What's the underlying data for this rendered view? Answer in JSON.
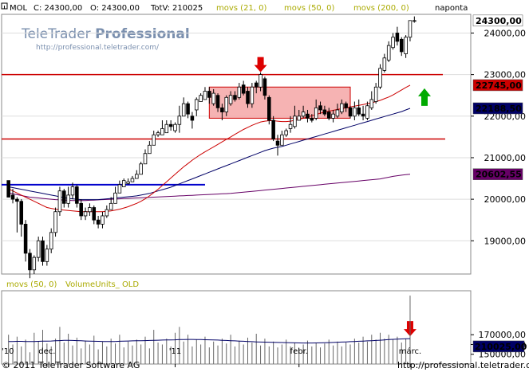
{
  "header": {
    "instrument": "MOL",
    "close": "C: 24300,00",
    "open": "O: 24300,00",
    "volume": "TotV: 210025",
    "ma_labels": [
      "movs (21, 0)",
      "movs (50, 0)",
      "movs (200, 0)"
    ],
    "period": "naponta"
  },
  "watermark": {
    "title_a": "TeleTrader",
    "title_b": "Professional",
    "url": "http://professional.teletrader.com/"
  },
  "footer": {
    "copyright": "© 2011 TeleTrader Software AG",
    "url": "http://professional.teletrader.com/"
  },
  "volume_panel": {
    "label_ma": "movs (50, 0)",
    "label_vol": "VolumeUnits_ OLD",
    "ticks": [
      "170000,00",
      "160000,00",
      "150000,00"
    ],
    "last_value": "210025,00"
  },
  "price_tags": {
    "last": "24300,00",
    "ma21": "22745,00",
    "ma50": "22188,50",
    "ma200": "20602,55"
  },
  "colors": {
    "up_candle": "#ffffff",
    "down_candle": "#000000",
    "ma21": "#cc0000",
    "ma50": "#000066",
    "ma200": "#660066",
    "resistance": "#cc0000",
    "support_blue": "#0000cc",
    "box_fill": "#f4a6a6",
    "arrow_down": "#dd0000",
    "arrow_up": "#00aa00",
    "header_ma": "#aaaa00"
  },
  "chart_data": {
    "type": "candlestick",
    "y_axis": {
      "ticks": [
        "24000,00",
        "23000,00",
        "22000,00",
        "21000,00",
        "20000,00",
        "19000,00"
      ],
      "ylim": [
        18200,
        24450
      ]
    },
    "x_axis": {
      "tick_labels": [
        "'10",
        "dec.",
        "'11",
        "febr.",
        "márc."
      ],
      "tick_index": [
        0,
        9,
        39,
        68,
        94
      ]
    },
    "candles": [
      [
        20050,
        20450,
        20350,
        20050
      ],
      [
        20000,
        20100,
        20250,
        19900
      ],
      [
        19950,
        20000,
        20050,
        19200
      ],
      [
        19400,
        19950,
        20000,
        19100
      ],
      [
        18700,
        19400,
        19500,
        18500
      ],
      [
        18300,
        18700,
        18800,
        18100
      ],
      [
        18600,
        18300,
        18650,
        18200
      ],
      [
        19000,
        18600,
        19100,
        18500
      ],
      [
        18500,
        19000,
        19100,
        18400
      ],
      [
        18800,
        18500,
        18900,
        18400
      ],
      [
        19200,
        18800,
        19300,
        18700
      ],
      [
        19700,
        19200,
        19800,
        19100
      ],
      [
        20200,
        19700,
        20300,
        19600
      ],
      [
        19900,
        20200,
        20250,
        19800
      ],
      [
        20100,
        19900,
        20300,
        19800
      ],
      [
        20300,
        20100,
        20400,
        20000
      ],
      [
        19900,
        20300,
        20350,
        19800
      ],
      [
        19600,
        19900,
        20000,
        19500
      ],
      [
        19700,
        19600,
        19800,
        19500
      ],
      [
        19800,
        19700,
        19900,
        19600
      ],
      [
        19500,
        19800,
        19850,
        19400
      ],
      [
        19400,
        19500,
        19600,
        19300
      ],
      [
        19600,
        19400,
        19700,
        19300
      ],
      [
        19750,
        19600,
        19850,
        19550
      ],
      [
        19900,
        19750,
        20050,
        19800
      ],
      [
        20150,
        19900,
        20300,
        20100
      ],
      [
        20350,
        20150,
        20450,
        20250
      ],
      [
        20450,
        20300,
        20500,
        20350
      ],
      [
        20420,
        20380,
        20500,
        20350
      ],
      [
        20500,
        20420,
        20560,
        20450
      ],
      [
        20600,
        20500,
        20700,
        20550
      ],
      [
        20850,
        20600,
        20900,
        20600
      ],
      [
        21100,
        20850,
        21200,
        20850
      ],
      [
        21300,
        21100,
        21400,
        21100
      ],
      [
        21550,
        21300,
        21650,
        21300
      ],
      [
        21600,
        21550,
        21650,
        21500
      ],
      [
        21700,
        21550,
        21900,
        21550
      ],
      [
        21800,
        21600,
        21900,
        21600
      ],
      [
        21750,
        21800,
        21900,
        21650
      ],
      [
        21800,
        21650,
        21850,
        21600
      ],
      [
        22000,
        21800,
        22250,
        21600
      ],
      [
        22300,
        22000,
        22450,
        22000
      ],
      [
        22050,
        22300,
        22350,
        21950
      ],
      [
        21900,
        22000,
        22100,
        21700
      ],
      [
        22400,
        22150,
        22450,
        22000
      ],
      [
        22500,
        22350,
        22550,
        22350
      ],
      [
        22600,
        22400,
        22700,
        22400
      ],
      [
        22450,
        22600,
        22700,
        22300
      ],
      [
        22550,
        22300,
        22650,
        22250
      ],
      [
        22200,
        22500,
        22550,
        22100
      ],
      [
        22100,
        22200,
        22300,
        21900
      ],
      [
        22450,
        22100,
        22500,
        22000
      ],
      [
        22500,
        22300,
        22600,
        22250
      ],
      [
        22400,
        22500,
        22600,
        22350
      ],
      [
        22700,
        22450,
        22800,
        22400
      ],
      [
        22550,
        22750,
        22850,
        22500
      ],
      [
        22300,
        22600,
        22700,
        22200
      ],
      [
        22700,
        22300,
        22800,
        22200
      ],
      [
        22700,
        22800,
        22850,
        22550
      ],
      [
        23000,
        22700,
        23050,
        22600
      ],
      [
        22500,
        22900,
        22950,
        22400
      ],
      [
        21900,
        22450,
        22500,
        21800
      ],
      [
        21450,
        21900,
        22000,
        21400
      ],
      [
        21300,
        21400,
        21550,
        21050
      ],
      [
        21550,
        21300,
        21650,
        21300
      ],
      [
        21650,
        21550,
        21700,
        21500
      ],
      [
        21800,
        21700,
        22000,
        21600
      ],
      [
        22000,
        21750,
        22250,
        21700
      ],
      [
        22000,
        21900,
        22150,
        21900
      ],
      [
        22100,
        22000,
        22250,
        21950
      ],
      [
        21950,
        22050,
        22150,
        21850
      ],
      [
        21900,
        21950,
        22050,
        21850
      ],
      [
        22200,
        21950,
        22400,
        21900
      ],
      [
        22150,
        22250,
        22350,
        22050
      ],
      [
        22050,
        22150,
        22250,
        22000
      ],
      [
        21950,
        22100,
        22200,
        21900
      ],
      [
        22050,
        21950,
        22150,
        21850
      ],
      [
        22150,
        22000,
        22300,
        21950
      ],
      [
        22300,
        22100,
        22400,
        22050
      ],
      [
        22200,
        22300,
        22350,
        22100
      ],
      [
        22000,
        22200,
        22250,
        21950
      ],
      [
        22200,
        22000,
        22350,
        21900
      ],
      [
        22050,
        22200,
        22400,
        22000
      ],
      [
        22000,
        22050,
        22250,
        21900
      ],
      [
        22250,
        21950,
        22350,
        21900
      ],
      [
        22400,
        22200,
        22600,
        22150
      ],
      [
        22700,
        22350,
        22800,
        22300
      ],
      [
        23150,
        22700,
        23250,
        22650
      ],
      [
        23400,
        23100,
        23500,
        23050
      ],
      [
        23700,
        23350,
        23800,
        23300
      ],
      [
        23900,
        23650,
        24000,
        23600
      ],
      [
        23800,
        24000,
        24150,
        23700
      ],
      [
        23550,
        23850,
        23900,
        23450
      ],
      [
        23900,
        23500,
        23950,
        23400
      ],
      [
        24300,
        23900,
        24300,
        23800
      ],
      [
        24300,
        24300,
        24400,
        24250
      ]
    ],
    "ma21": [
      20250,
      20200,
      20150,
      20100,
      20050,
      20000,
      19950,
      19900,
      19850,
      19800,
      19780,
      19760,
      19750,
      19740,
      19730,
      19720,
      19710,
      19700,
      19700,
      19700,
      19700,
      19700,
      19700,
      19710,
      19720,
      19740,
      19760,
      19790,
      19820,
      19860,
      19900,
      19950,
      20010,
      20080,
      20160,
      20240,
      20330,
      20420,
      20510,
      20600,
      20690,
      20780,
      20860,
      20940,
      21010,
      21080,
      21140,
      21200,
      21260,
      21320,
      21380,
      21440,
      21500,
      21560,
      21620,
      21680,
      21730,
      21780,
      21820,
      21860,
      21880,
      21890,
      21890,
      21880,
      21870,
      21870,
      21880,
      21900,
      21920,
      21950,
      21980,
      22010,
      22040,
      22070,
      22100,
      22120,
      22140,
      22160,
      22180,
      22200,
      22220,
      22240,
      22260,
      22280,
      22300,
      22320,
      22350,
      22380,
      22420,
      22460,
      22510,
      22570,
      22630,
      22690,
      22745
    ],
    "ma50": [
      20300,
      20280,
      20260,
      20240,
      20220,
      20200,
      20180,
      20160,
      20140,
      20120,
      20100,
      20080,
      20060,
      20040,
      20020,
      20010,
      20000,
      19990,
      19990,
      19990,
      19990,
      19990,
      20000,
      20010,
      20020,
      20030,
      20040,
      20050,
      20060,
      20070,
      20080,
      20100,
      20120,
      20140,
      20170,
      20200,
      20230,
      20260,
      20290,
      20330,
      20370,
      20410,
      20450,
      20490,
      20530,
      20570,
      20610,
      20650,
      20690,
      20730,
      20770,
      20810,
      20850,
      20890,
      20930,
      20970,
      21010,
      21050,
      21090,
      21130,
      21170,
      21200,
      21230,
      21250,
      21270,
      21300,
      21330,
      21360,
      21390,
      21420,
      21450,
      21480,
      21510,
      21540,
      21570,
      21600,
      21630,
      21660,
      21690,
      21720,
      21750,
      21780,
      21810,
      21840,
      21870,
      21900,
      21930,
      21960,
      21990,
      22020,
      22050,
      22080,
      22110,
      22150,
      22188
    ],
    "ma200": [
      20150,
      20130,
      20110,
      20090,
      20070,
      20050,
      20040,
      20030,
      20020,
      20010,
      20000,
      19990,
      19985,
      19980,
      19975,
      19970,
      19970,
      19970,
      19970,
      19975,
      19980,
      19985,
      19990,
      19995,
      20000,
      20005,
      20010,
      20015,
      20020,
      20025,
      20030,
      20035,
      20040,
      20045,
      20050,
      20055,
      20060,
      20065,
      20070,
      20075,
      20080,
      20085,
      20090,
      20095,
      20100,
      20105,
      20110,
      20115,
      20120,
      20125,
      20130,
      20135,
      20140,
      20150,
      20160,
      20170,
      20180,
      20190,
      20200,
      20210,
      20220,
      20230,
      20240,
      20250,
      20260,
      20270,
      20280,
      20290,
      20300,
      20310,
      20320,
      20330,
      20340,
      20350,
      20360,
      20370,
      20380,
      20390,
      20400,
      20410,
      20420,
      20430,
      20440,
      20450,
      20460,
      20470,
      20480,
      20490,
      20510,
      20530,
      20550,
      20565,
      20580,
      20592,
      20602
    ],
    "volume": [
      170000,
      160000,
      168000,
      158000,
      165000,
      152000,
      172000,
      163000,
      175000,
      161000,
      158000,
      166000,
      178000,
      162000,
      171000,
      159000,
      167000,
      156000,
      164000,
      160000,
      169000,
      155000,
      163000,
      158000,
      166000,
      161000,
      170000,
      157000,
      163000,
      159000,
      165000,
      160000,
      168000,
      156000,
      175000,
      162000,
      160000,
      166000,
      158000,
      172000,
      178000,
      163000,
      170000,
      158000,
      165000,
      160000,
      168000,
      157000,
      163000,
      159000,
      166000,
      161000,
      170000,
      158000,
      164000,
      160000,
      167000,
      162000,
      171000,
      159000,
      166000,
      158000,
      163000,
      157000,
      160000,
      165000,
      158000,
      162000,
      156000,
      160000,
      164000,
      158000,
      162000,
      157000,
      161000,
      165000,
      159000,
      163000,
      158000,
      162000,
      160000,
      166000,
      162000,
      168000,
      163000,
      170000,
      165000,
      172000,
      166000,
      170000,
      165000,
      168000,
      162000,
      166000,
      210025
    ],
    "vol_ma": [
      163000,
      163100,
      163200,
      163200,
      163100,
      163000,
      163100,
      163200,
      163400,
      163500,
      163600,
      163800,
      164000,
      164200,
      164200,
      164100,
      164000,
      163800,
      163600,
      163400,
      163300,
      163200,
      163100,
      163000,
      163000,
      163100,
      163300,
      163500,
      163600,
      163700,
      163800,
      163900,
      164000,
      164100,
      164200,
      164400,
      164500,
      164600,
      164700,
      164800,
      165000,
      165100,
      165200,
      165200,
      165100,
      165000,
      164900,
      164800,
      164700,
      164500,
      164300,
      164100,
      163900,
      163700,
      163500,
      163300,
      163100,
      162900,
      162700,
      162500,
      162400,
      162300,
      162200,
      162100,
      162000,
      161900,
      161800,
      161700,
      161600,
      161500,
      161500,
      161500,
      161600,
      161700,
      161800,
      161900,
      162100,
      162300,
      162500,
      162700,
      162900,
      163100,
      163300,
      163500,
      163700,
      163900,
      164100,
      164400,
      164700,
      165000,
      165300,
      165500,
      165700,
      165900,
      166000
    ],
    "levels": {
      "resistance": 23000,
      "support": 21450,
      "blue_line": 20350,
      "box_top": 22700,
      "box_bottom": 21950
    }
  }
}
